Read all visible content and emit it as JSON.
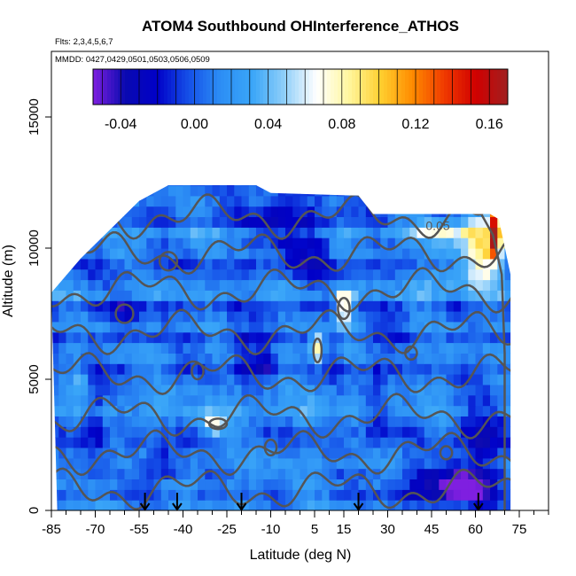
{
  "chart_data": {
    "type": "heatmap",
    "title": "ATOM4 Southbound OHInterference_ATHOS",
    "flights_label": "Flts: 2,3,4,5,6,7",
    "dates_label": "MMDD: 0427,0429,0501,0503,0506,0509",
    "xlabel": "Latitude (deg N)",
    "ylabel": "Altitude (m)",
    "xlim": [
      -85,
      85
    ],
    "ylim": [
      0,
      17500
    ],
    "x_ticks": [
      -85,
      -70,
      -55,
      -40,
      -25,
      -10,
      5,
      15,
      30,
      45,
      60,
      75
    ],
    "x_tick_labels": [
      "-85",
      "-70",
      "-55",
      "-40",
      "-25",
      "-10",
      "5",
      "15",
      "30",
      "45",
      "60",
      "75"
    ],
    "x_minor_step": 5,
    "y_ticks": [
      0,
      5000,
      10000,
      15000
    ],
    "y_tick_labels": [
      "0",
      "5000",
      "10000",
      "15000"
    ],
    "colorbar": {
      "min": -0.055,
      "max": 0.17,
      "ticks": [
        -0.04,
        0.0,
        0.04,
        0.08,
        0.12,
        0.16
      ],
      "tick_labels": [
        "-0.04",
        "0.00",
        "0.04",
        "0.08",
        "0.12",
        "0.16"
      ],
      "colors": [
        "#7f1fe0",
        "#0a0ab0",
        "#0000c8",
        "#1550e8",
        "#2c8ef5",
        "#3aa6f8",
        "#90cff9",
        "#ffffff",
        "#fff7a0",
        "#ffd030",
        "#ff8c00",
        "#f03a00",
        "#d00000",
        "#a02020"
      ]
    },
    "contour_label": "0.05",
    "contour_label_position": [
      43,
      10700
    ],
    "profile_markers_lat": [
      -53,
      -42,
      -20,
      20,
      61
    ],
    "coverage_top": [
      [
        -85,
        8300
      ],
      [
        -75,
        9600
      ],
      [
        -65,
        10700
      ],
      [
        -55,
        11800
      ],
      [
        -45,
        12400
      ],
      [
        -15,
        12400
      ],
      [
        -10,
        12100
      ],
      [
        20,
        12000
      ],
      [
        25,
        11300
      ],
      [
        40,
        11300
      ],
      [
        65,
        11300
      ],
      [
        68,
        11100
      ],
      [
        72,
        9000
      ],
      [
        72,
        0
      ],
      [
        -83,
        0
      ]
    ],
    "base_value": 0.01,
    "features": [
      {
        "lat": -70,
        "alt": 3500,
        "w": 4,
        "h": 2000,
        "v": -0.035
      },
      {
        "lat": -47,
        "alt": 1800,
        "w": 6,
        "h": 800,
        "v": -0.04
      },
      {
        "lat": -20,
        "alt": 6000,
        "w": 4,
        "h": 900,
        "v": -0.035
      },
      {
        "lat": -12,
        "alt": 5700,
        "w": 3,
        "h": 600,
        "v": -0.05
      },
      {
        "lat": -8,
        "alt": 11000,
        "w": 10,
        "h": 1400,
        "v": -0.03
      },
      {
        "lat": 5,
        "alt": 10000,
        "w": 8,
        "h": 1600,
        "v": -0.025
      },
      {
        "lat": 26,
        "alt": 4300,
        "w": 4,
        "h": 2200,
        "v": -0.03
      },
      {
        "lat": 45,
        "alt": 900,
        "w": 14,
        "h": 700,
        "v": -0.045
      },
      {
        "lat": 56,
        "alt": 900,
        "w": 8,
        "h": 600,
        "v": -0.05
      },
      {
        "lat": 62,
        "alt": 2500,
        "w": 10,
        "h": 2000,
        "v": -0.035
      },
      {
        "lat": -60,
        "alt": 7800,
        "w": 5,
        "h": 700,
        "v": -0.03
      },
      {
        "lat": -30,
        "alt": 3300,
        "w": 4,
        "h": 400,
        "v": 0.06
      },
      {
        "lat": 15,
        "alt": 7800,
        "w": 3,
        "h": 600,
        "v": 0.09
      },
      {
        "lat": 6,
        "alt": 6200,
        "w": 2,
        "h": 600,
        "v": 0.08
      },
      {
        "lat": 48,
        "alt": 10700,
        "w": 12,
        "h": 500,
        "v": 0.045
      },
      {
        "lat": 62,
        "alt": 10000,
        "w": 6,
        "h": 1500,
        "v": 0.07
      },
      {
        "lat": 67,
        "alt": 10800,
        "w": 2,
        "h": 1200,
        "v": 0.15
      },
      {
        "lat": 50,
        "alt": 9000,
        "w": 10,
        "h": 700,
        "v": 0.03
      },
      {
        "lat": -75,
        "alt": 5000,
        "w": 3,
        "h": 400,
        "v": 0.04
      }
    ]
  }
}
